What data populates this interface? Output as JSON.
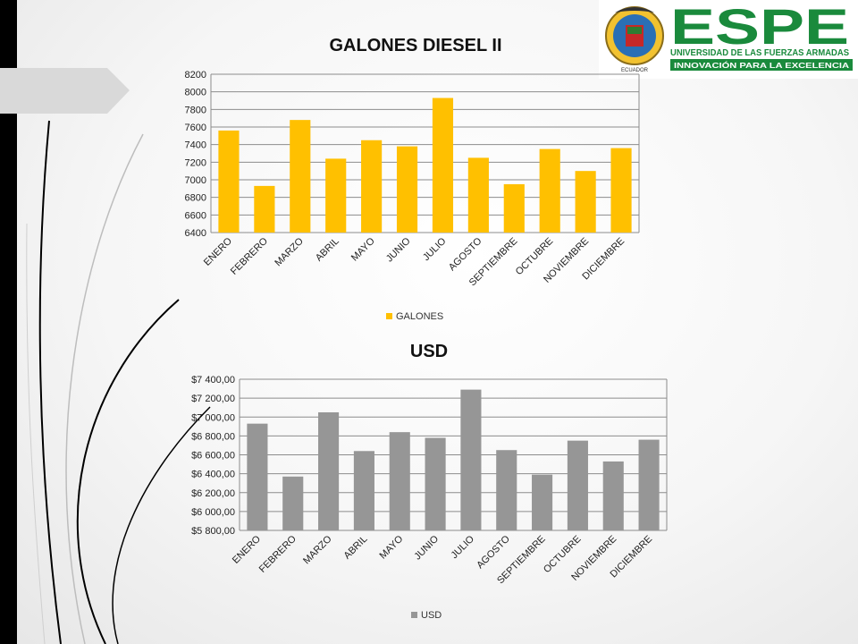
{
  "logo": {
    "name": "ESPE",
    "line1": "UNIVERSIDAD DE LAS FUERZAS ARMADAS",
    "line2": "INNOVACIÓN PARA LA EXCELENCIA",
    "seal_text": "ECUADOR",
    "brand_color": "#1a8a3c"
  },
  "chart_data": [
    {
      "type": "bar",
      "title": "GALONES DIESEL II",
      "categories": [
        "ENERO",
        "FEBRERO",
        "MARZO",
        "ABRIL",
        "MAYO",
        "JUNIO",
        "JULIO",
        "AGOSTO",
        "SEPTIEMBRE",
        "OCTUBRE",
        "NOVIEMBRE",
        "DICIEMBRE"
      ],
      "series": [
        {
          "name": "GALONES",
          "color": "#ffc000",
          "values": [
            7560,
            6930,
            7680,
            7240,
            7450,
            7380,
            7930,
            7250,
            6950,
            7350,
            7100,
            7360
          ]
        }
      ],
      "ylim": [
        6400,
        8200
      ],
      "yticks": [
        6400,
        6600,
        6800,
        7000,
        7200,
        7400,
        7600,
        7800,
        8000,
        8200
      ],
      "ytick_labels": [
        "6400",
        "6600",
        "6800",
        "7000",
        "7200",
        "7400",
        "7600",
        "7800",
        "8000",
        "8200"
      ],
      "grid": true,
      "legend": "bottom"
    },
    {
      "type": "bar",
      "title": "USD",
      "categories": [
        "ENERO",
        "FEBRERO",
        "MARZO",
        "ABRIL",
        "MAYO",
        "JUNIO",
        "JULIO",
        "AGOSTO",
        "SEPTIEMBRE",
        "OCTUBRE",
        "NOVIEMBRE",
        "DICIEMBRE"
      ],
      "series": [
        {
          "name": "USD",
          "color": "#969696",
          "values": [
            6930,
            6370,
            7050,
            6640,
            6840,
            6780,
            7290,
            6650,
            6390,
            6750,
            6530,
            6760
          ]
        }
      ],
      "ylim": [
        5800,
        7400
      ],
      "yticks": [
        5800,
        6000,
        6200,
        6400,
        6600,
        6800,
        7000,
        7200,
        7400
      ],
      "ytick_labels": [
        "$5 800,00",
        "$6 000,00",
        "$6 200,00",
        "$6 400,00",
        "$6 600,00",
        "$6 800,00",
        "$7 000,00",
        "$7 200,00",
        "$7 400,00"
      ],
      "grid": true,
      "legend": "bottom"
    }
  ]
}
